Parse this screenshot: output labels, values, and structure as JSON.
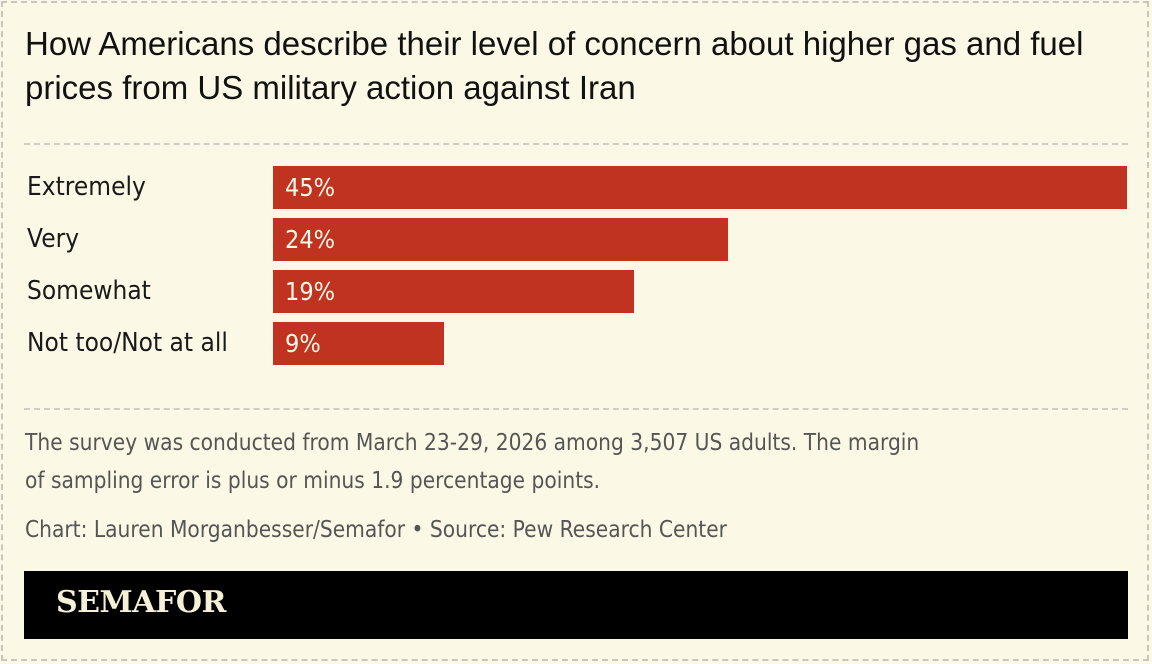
{
  "chart_data": {
    "type": "bar",
    "orientation": "horizontal",
    "title": "How Americans describe their level of concern about higher gas and fuel prices from US military action against Iran",
    "categories": [
      "Extremely",
      "Very",
      "Somewhat",
      "Not too/Not at all"
    ],
    "values": [
      45,
      24,
      19,
      9
    ],
    "value_labels": [
      "45%",
      "24%",
      "19%",
      "9%"
    ],
    "xlim": [
      0,
      45
    ],
    "grid": false,
    "bar_color": "#c03321"
  },
  "note": {
    "line1": "The survey was conducted from March 23-29, 2026 among 3,507 US adults. The margin",
    "line2": "of sampling error is plus or minus 1.9 percentage points.",
    "credit": "Chart: Lauren Morganbesser/Semafor • Source: Pew Research Center"
  },
  "brand": {
    "logo_text": "SEMAFOR"
  },
  "colors": {
    "background": "#fbf9e6",
    "bar": "#c03321",
    "brand_bg": "#000000"
  }
}
